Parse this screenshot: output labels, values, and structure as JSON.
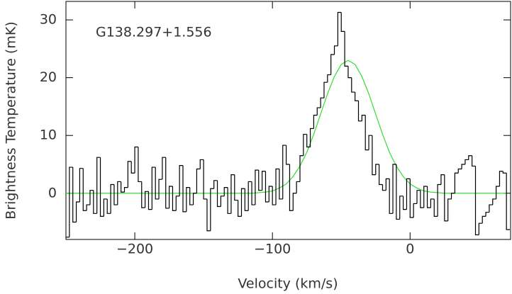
{
  "chart_data": {
    "type": "histogram",
    "annotation": "G138.297+1.556",
    "xlabel": "Velocity (km/s)",
    "ylabel": "Brightness Temperature (mK)",
    "color": "#000000",
    "bins": [
      -250,
      -247.5,
      -245,
      -242.5,
      -240,
      -237.5,
      -235,
      -232.5,
      -230,
      -227.5,
      -225,
      -222.5,
      -220,
      -217.5,
      -215,
      -212.5,
      -210,
      -207.5,
      -205,
      -202.5,
      -200,
      -197.5,
      -195,
      -192.5,
      -190,
      -187.5,
      -185,
      -182.5,
      -180,
      -177.5,
      -175,
      -172.5,
      -170,
      -167.5,
      -165,
      -162.5,
      -160,
      -157.5,
      -155,
      -152.5,
      -150,
      -147.5,
      -145,
      -142.5,
      -140,
      -137.5,
      -135,
      -132.5,
      -130,
      -127.5,
      -125,
      -122.5,
      -120,
      -117.5,
      -115,
      -112.5,
      -110,
      -107.5,
      -105,
      -102.5,
      -100,
      -97.5,
      -95,
      -92.5,
      -90,
      -87.5,
      -85,
      -82.5,
      -80,
      -77.5,
      -75,
      -72.5,
      -70,
      -67.5,
      -65,
      -62.5,
      -60,
      -57.5,
      -55,
      -52.5,
      -50,
      -47.5,
      -45,
      -42.5,
      -40,
      -37.5,
      -35,
      -32.5,
      -30,
      -27.5,
      -25,
      -22.5,
      -20,
      -17.5,
      -15,
      -12.5,
      -10,
      -7.5,
      -5,
      -2.5,
      0,
      2.5,
      5,
      7.5,
      10,
      12.5,
      15,
      17.5,
      20,
      22.5,
      25,
      27.5,
      30,
      32.5,
      35,
      37.5,
      40,
      42.5,
      45,
      47.5,
      50,
      52.5,
      55,
      57.5,
      60,
      62.5,
      65,
      67.5,
      70,
      72.5
    ],
    "values": [
      -7.6,
      4.5,
      -5,
      -1.5,
      4.3,
      -3,
      -2,
      0.5,
      -3.5,
      6.2,
      -4,
      -1,
      -3.5,
      1.5,
      -2,
      2,
      0.2,
      1,
      5.5,
      3.5,
      8,
      2,
      -2.5,
      0.3,
      -2.8,
      4.5,
      -1,
      2.4,
      6.2,
      -2.6,
      1.2,
      -3,
      -0.5,
      4.8,
      -3.2,
      1,
      -2,
      0,
      4.2,
      5.8,
      -1,
      -6.5,
      0.8,
      2.2,
      -2.3,
      -0.5,
      1,
      -3.5,
      3.2,
      -1.2,
      -4,
      0.8,
      -3,
      2,
      -2,
      4,
      0.5,
      3.8,
      -1.5,
      1.2,
      -2,
      4.2,
      -1,
      8.3,
      5,
      -3,
      0,
      2,
      6.5,
      10.2,
      8,
      11.2,
      13.5,
      14.8,
      16.5,
      19.2,
      20.5,
      24,
      25.5,
      31.3,
      28,
      22,
      20,
      17.5,
      16,
      12.5,
      13.5,
      7.5,
      10,
      3.2,
      5,
      1.5,
      0.5,
      2.5,
      -3.5,
      5,
      -4.5,
      -0.5,
      -2.8,
      2.5,
      -4.2,
      -1.8,
      0.5,
      -2.5,
      1.2,
      -2.5,
      -1,
      -4,
      1.5,
      3.2,
      -4.8,
      -1,
      0,
      3.5,
      4.2,
      5,
      5.8,
      6.5,
      4.7,
      -7.2,
      -5.2,
      -4,
      -3.3,
      -2,
      -1,
      1.2,
      3.8,
      3.5,
      -6.3
    ],
    "fit": {
      "type": "line",
      "color": "#33dd33",
      "x": [
        -250,
        -200,
        -150,
        -115,
        -110,
        -105,
        -100,
        -95,
        -90,
        -85,
        -80,
        -75,
        -70,
        -65,
        -60,
        -55,
        -50,
        -45,
        -40,
        -35,
        -30,
        -25,
        -20,
        -15,
        -10,
        -5,
        0,
        5,
        10,
        15,
        20,
        25,
        70
      ],
      "values": [
        0,
        0,
        0,
        0,
        0.1,
        0.2,
        0.4,
        0.9,
        1.6,
        2.9,
        4.7,
        7.1,
        10.2,
        13.7,
        17.2,
        20.2,
        22.3,
        23,
        22.3,
        20.2,
        17.2,
        13.7,
        10.2,
        7.1,
        4.7,
        2.9,
        1.6,
        0.9,
        0.4,
        0.2,
        0.1,
        0,
        0
      ]
    },
    "xlim": [
      -250,
      73
    ],
    "ylim": [
      -8,
      33.2
    ],
    "xticks": [
      {
        "value": -200,
        "label": "−200"
      },
      {
        "value": -100,
        "label": "−100"
      },
      0
    ],
    "yticks": [
      0,
      10,
      20,
      30
    ]
  }
}
